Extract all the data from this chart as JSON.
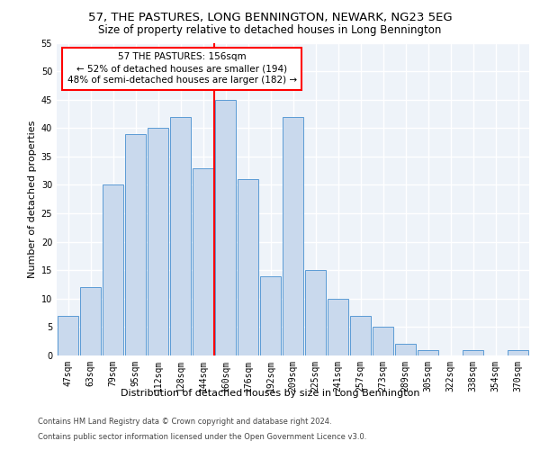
{
  "title1": "57, THE PASTURES, LONG BENNINGTON, NEWARK, NG23 5EG",
  "title2": "Size of property relative to detached houses in Long Bennington",
  "xlabel": "Distribution of detached houses by size in Long Bennington",
  "ylabel": "Number of detached properties",
  "categories": [
    "47sqm",
    "63sqm",
    "79sqm",
    "95sqm",
    "112sqm",
    "128sqm",
    "144sqm",
    "160sqm",
    "176sqm",
    "192sqm",
    "209sqm",
    "225sqm",
    "241sqm",
    "257sqm",
    "273sqm",
    "289sqm",
    "305sqm",
    "322sqm",
    "338sqm",
    "354sqm",
    "370sqm"
  ],
  "values": [
    7,
    12,
    30,
    39,
    40,
    42,
    33,
    45,
    31,
    14,
    42,
    15,
    10,
    7,
    5,
    2,
    1,
    0,
    1,
    0,
    1
  ],
  "bar_color": "#c9d9ed",
  "bar_edge_color": "#5b9bd5",
  "property_line_x": 7,
  "property_line_label": "57 THE PASTURES: 156sqm",
  "annotation_line1": "← 52% of detached houses are smaller (194)",
  "annotation_line2": "48% of semi-detached houses are larger (182) →",
  "annotation_box_color": "white",
  "annotation_box_edge": "red",
  "vline_color": "red",
  "ylim": [
    0,
    55
  ],
  "yticks": [
    0,
    5,
    10,
    15,
    20,
    25,
    30,
    35,
    40,
    45,
    50,
    55
  ],
  "footnote1": "Contains HM Land Registry data © Crown copyright and database right 2024.",
  "footnote2": "Contains public sector information licensed under the Open Government Licence v3.0.",
  "bg_color": "#eef3f9",
  "grid_color": "white",
  "title1_fontsize": 9.5,
  "title2_fontsize": 8.5,
  "xlabel_fontsize": 8,
  "ylabel_fontsize": 8,
  "tick_fontsize": 7,
  "annot_fontsize": 7.5,
  "footnote_fontsize": 6
}
